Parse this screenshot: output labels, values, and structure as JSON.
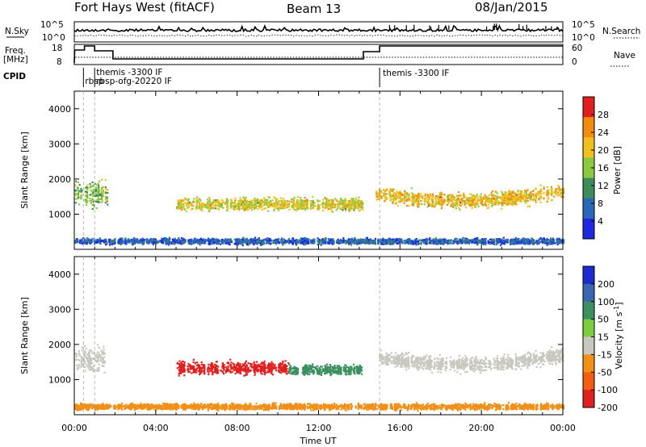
{
  "header": {
    "station": "Fort Hays West (fitACF)",
    "beam": "Beam 13",
    "date": "08/Jan/2015"
  },
  "params": {
    "nsky_label": "N.Sky",
    "nsearch_label": "N.Search",
    "freq_label_1": "Freq.",
    "freq_label_2": "[MHz]",
    "nave_label": "Nave",
    "cpid_label": "CPID",
    "nsky_ticks": [
      "10^5",
      "10^0"
    ],
    "nsearch_ticks": [
      "10^5",
      "10^0"
    ],
    "freq_ticks": [
      "18",
      "8"
    ],
    "nave_ticks": [
      "60",
      "0"
    ],
    "cpid_entries": [
      {
        "time_h": 0.45,
        "label": "rbsp"
      },
      {
        "time_h": 1.0,
        "label": "rbsp-ofg-20220 IF"
      },
      {
        "time_h": 1.0,
        "label": "themis -3300 IF"
      },
      {
        "time_h": 15.0,
        "label": "themis -3300 IF"
      }
    ]
  },
  "chart_data": [
    {
      "type": "heatmap",
      "name": "Power",
      "ylabel": "Slant Range [km]",
      "xlabel": "",
      "x_range_hours": [
        0,
        24
      ],
      "ylim": [
        0,
        4500
      ],
      "y_ticks": [
        "1000",
        "2000",
        "3000",
        "4000"
      ],
      "colorbar": {
        "label": "Power [dB]",
        "ticks": [
          "4",
          "8",
          "12",
          "16",
          "20",
          "24",
          "28"
        ],
        "range": [
          0,
          30
        ],
        "colors": [
          "#1f28e0",
          "#2a68b8",
          "#3c8c5c",
          "#8cc840",
          "#f0c020",
          "#f08c10",
          "#e02020"
        ]
      },
      "scatter_regions": [
        {
          "t_start": 0.0,
          "t_end": 1.6,
          "r_center": 1600,
          "r_halfwidth": 500,
          "dominant_value": 14
        },
        {
          "t_start": 5.0,
          "t_end": 14.2,
          "r_center": 1300,
          "r_halfwidth": 250,
          "dominant_value": 18
        },
        {
          "t_start": 14.8,
          "t_end": 24.0,
          "r_center": 1400,
          "r_halfwidth": 300,
          "dominant_value": 20
        },
        {
          "t_start": 0.0,
          "t_end": 24.0,
          "r_center": 250,
          "r_halfwidth": 120,
          "dominant_value": 6
        }
      ]
    },
    {
      "type": "heatmap",
      "name": "Velocity",
      "ylabel": "Slant Range [km]",
      "xlabel": "Time UT",
      "x_range_hours": [
        0,
        24
      ],
      "x_ticks": [
        "00:00",
        "04:00",
        "08:00",
        "12:00",
        "16:00",
        "20:00",
        "00:00"
      ],
      "ylim": [
        0,
        4500
      ],
      "y_ticks": [
        "1000",
        "2000",
        "3000",
        "4000"
      ],
      "colorbar": {
        "label": "Velocity [m s-1]",
        "ticks": [
          "200",
          "100",
          "50",
          "15",
          "-15",
          "-50",
          "-100",
          "-200"
        ],
        "range": [
          -250,
          250
        ],
        "colors": [
          "#1c2ad0",
          "#3a66b0",
          "#3c9060",
          "#80cc40",
          "#c8c8c0",
          "#f09018",
          "#f06010",
          "#e02020"
        ]
      },
      "scatter_regions": [
        {
          "t_start": 0.0,
          "t_end": 1.6,
          "r_center": 1600,
          "r_halfwidth": 500,
          "dominant_value": 0
        },
        {
          "t_start": 5.0,
          "t_end": 10.5,
          "r_center": 1350,
          "r_halfwidth": 250,
          "dominant_value": -180
        },
        {
          "t_start": 10.5,
          "t_end": 14.2,
          "r_center": 1300,
          "r_halfwidth": 200,
          "dominant_value": 40
        },
        {
          "t_start": 14.8,
          "t_end": 24.0,
          "r_center": 1450,
          "r_halfwidth": 300,
          "dominant_value": 0
        },
        {
          "t_start": 0.0,
          "t_end": 24.0,
          "r_center": 250,
          "r_halfwidth": 120,
          "dominant_value": -40
        }
      ]
    }
  ]
}
